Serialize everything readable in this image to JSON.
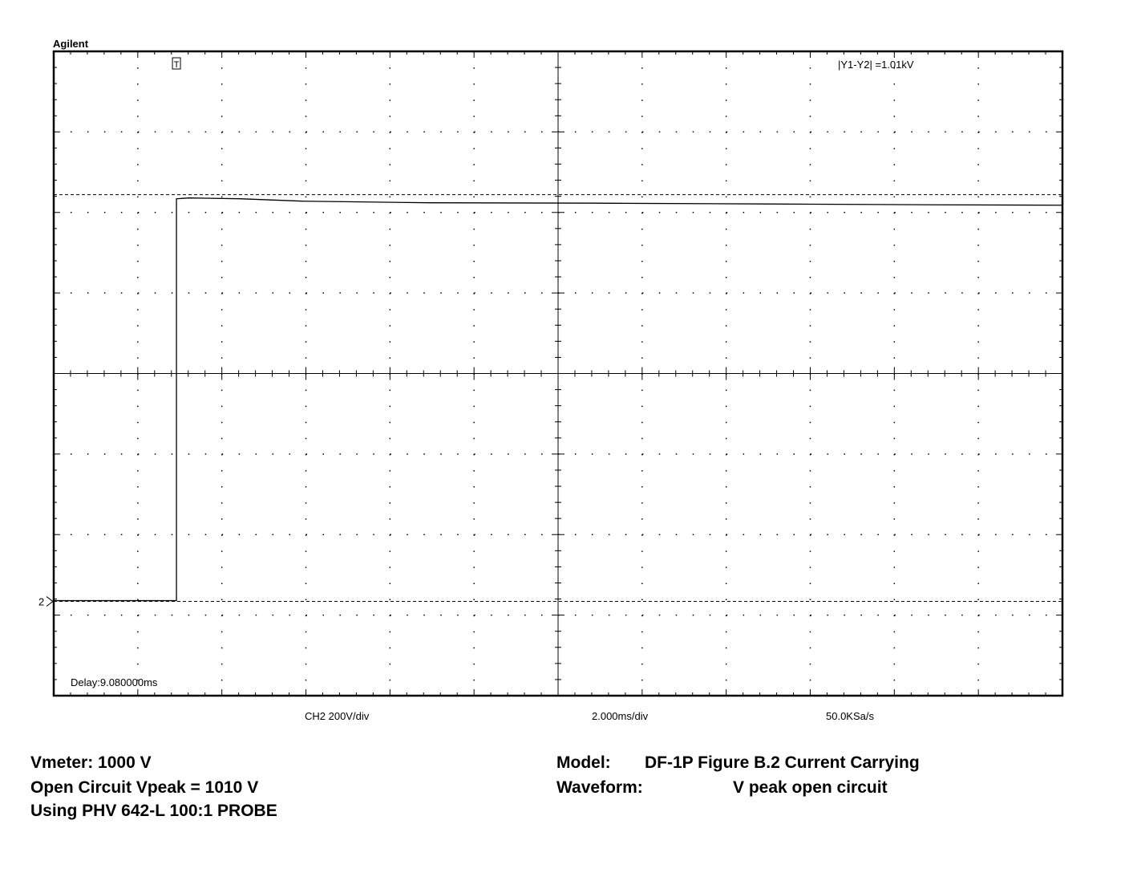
{
  "chart_data": {
    "type": "line",
    "brand": "Agilent",
    "trigger_marker": "T",
    "channel_marker": "2",
    "cursor_readout": "|Y1-Y2|  =1.01kV",
    "delay": "Delay:9.080000ms",
    "vertical_scale": "CH2 200V/div",
    "time_scale": "2.000ms/div",
    "sample_rate": "50.0KSa/s",
    "x": [
      -2.92,
      -1.5,
      0,
      0,
      0.3,
      1.5,
      3,
      6,
      10,
      14,
      18,
      21.08
    ],
    "series": [
      {
        "name": "CH2",
        "color": "#000000",
        "values": [
          2,
          2,
          2,
          1000,
          1002,
          1000,
          994,
          990,
          989,
          987,
          985,
          984
        ]
      }
    ],
    "cursors": [
      1010,
      0
    ],
    "xlim": [
      -2.92,
      21.08
    ],
    "ylim": [
      -234,
      1366
    ]
  },
  "notes": {
    "vmeter": "Vmeter: 1000 V",
    "vpeak": "Open Circuit Vpeak = 1010 V",
    "probe": "Using PHV 642-L 100:1 PROBE",
    "model_label": "Model:",
    "model": "DF-1P Figure B.2 Current Carrying",
    "waveform_label": "Waveform:",
    "waveform": "V peak open circuit"
  }
}
